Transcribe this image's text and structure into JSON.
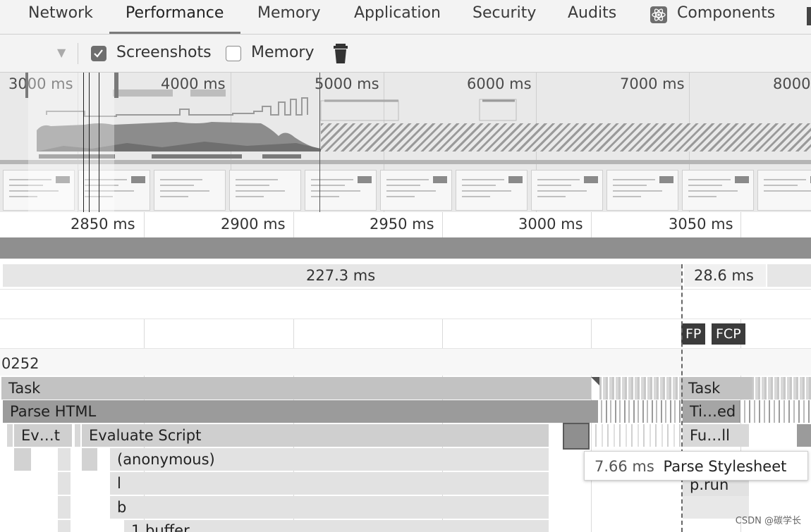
{
  "tabs": [
    {
      "label": "Network"
    },
    {
      "label": "Performance",
      "active": true
    },
    {
      "label": "Memory"
    },
    {
      "label": "Application"
    },
    {
      "label": "Security"
    },
    {
      "label": "Audits"
    },
    {
      "label": "Components",
      "icon": "react-icon"
    }
  ],
  "toolbar": {
    "screenshots_label": "Screenshots",
    "screenshots_checked": true,
    "memory_label": "Memory",
    "memory_checked": false
  },
  "overview": {
    "ticks": [
      "3000 ms",
      "4000 ms",
      "5000 ms",
      "6000 ms",
      "7000 ms",
      "8000"
    ]
  },
  "ruler": {
    "ticks": [
      "2850 ms",
      "2900 ms",
      "2950 ms",
      "3000 ms",
      "3050 ms"
    ]
  },
  "frames": {
    "left": "227.3 ms",
    "right": "28.6 ms"
  },
  "markers": {
    "fp": "FP",
    "fcp": "FCP"
  },
  "thread_label": "0252",
  "flame": {
    "task": "Task",
    "task_right": "Task",
    "parse_html": "Parse HTML",
    "parse_right": "Ti…ed",
    "ev_short": "Ev…t",
    "evaluate_script": "Evaluate Script",
    "fu_right": "Fu…ll",
    "anonymous": "(anonymous)",
    "l": "l",
    "b": "b",
    "buffer": "1.buffer",
    "prun": "p.run"
  },
  "tooltip": {
    "duration": "7.66 ms",
    "name": "Parse Stylesheet"
  },
  "watermark": "CSDN @碳学长"
}
